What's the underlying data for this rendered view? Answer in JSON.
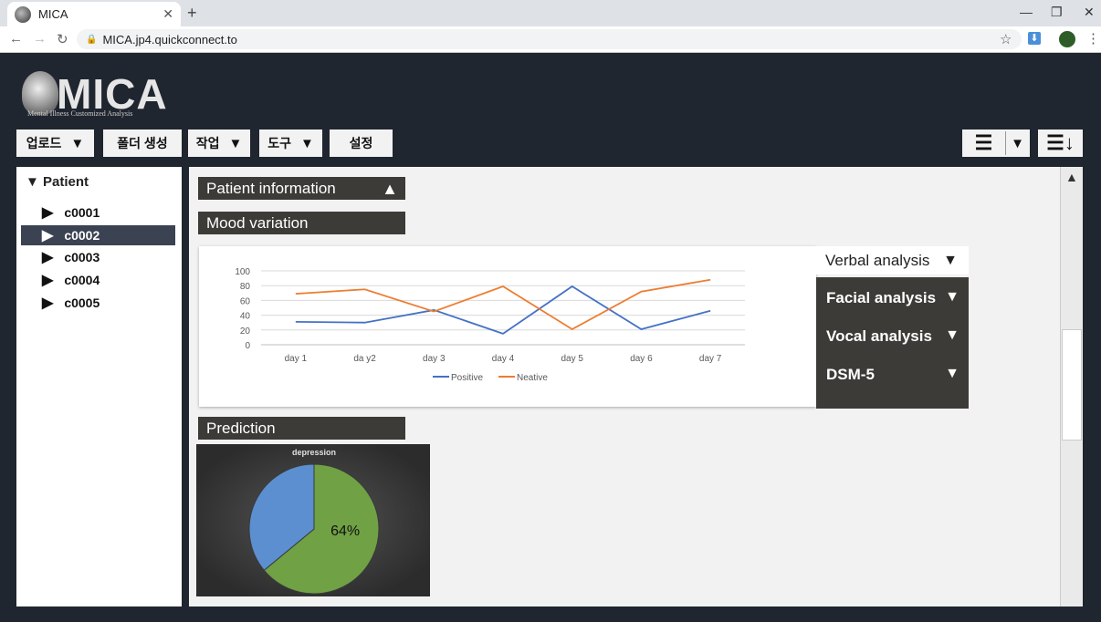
{
  "browser": {
    "tab_title": "MICA",
    "url": "MICA.jp4.quickconnect.to"
  },
  "logo": {
    "title": "MICA",
    "subtitle": "Mental Illness Customized Analysis"
  },
  "toolbar": {
    "upload": "업로드",
    "new_folder": "폴더 생성",
    "task": "작업",
    "tools": "도구",
    "settings": "설정"
  },
  "sidebar": {
    "root": "Patient",
    "items": [
      "c0001",
      "c0002",
      "c0003",
      "c0004",
      "c0005"
    ],
    "selected": "c0002"
  },
  "sections": {
    "patient_info": "Patient information",
    "mood_variation": "Mood variation",
    "prediction": "Prediction"
  },
  "analysis": {
    "verbal": "Verbal analysis",
    "facial": "Facial analysis",
    "vocal": "Vocal analysis",
    "dsm": "DSM-5"
  },
  "chart_data": [
    {
      "type": "line",
      "categories": [
        "day 1",
        "da y2",
        "day 3",
        "day 4",
        "day 5",
        "day 6",
        "day 7"
      ],
      "series": [
        {
          "name": "Positive",
          "values": [
            31,
            30,
            47,
            15,
            79,
            21,
            46
          ],
          "color": "#4472c4"
        },
        {
          "name": "Neative",
          "values": [
            69,
            75,
            45,
            79,
            21,
            72,
            88
          ],
          "color": "#ed7d31"
        }
      ],
      "yticks": [
        "100",
        "80",
        "60",
        "40",
        "20",
        "0"
      ],
      "ylim": [
        0,
        100
      ],
      "grid": true,
      "legend": "bottom"
    },
    {
      "type": "pie",
      "title": "depression",
      "slices": [
        {
          "value": 64,
          "label": "64%",
          "color": "#70a145"
        },
        {
          "value": 36,
          "color": "#5b8fd0"
        }
      ]
    }
  ]
}
